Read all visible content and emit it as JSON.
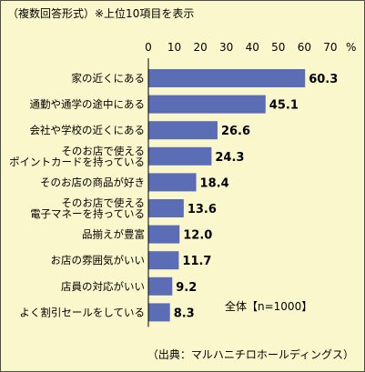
{
  "chart_data": {
    "type": "bar",
    "orientation": "horizontal",
    "note": "（複数回答形式）※上位10項目を表示",
    "unit": "%",
    "xlim": [
      0,
      70
    ],
    "xticks": [
      0,
      10,
      20,
      30,
      40,
      50,
      60,
      70
    ],
    "categories": [
      [
        "家の近くにある"
      ],
      [
        "通勤や通学の途中にある"
      ],
      [
        "会社や学校の近くにある"
      ],
      [
        "そのお店で使える",
        "ポイントカードを持っている"
      ],
      [
        "そのお店の商品が好き"
      ],
      [
        "そのお店で使える",
        "電子マネーを持っている"
      ],
      [
        "品揃えが豊富"
      ],
      [
        "お店の雰囲気がいい"
      ],
      [
        "店員の対応がいい"
      ],
      [
        "よく割引セールをしている"
      ]
    ],
    "values": [
      60.3,
      45.1,
      26.6,
      24.3,
      18.4,
      13.6,
      12.0,
      11.7,
      9.2,
      8.3
    ],
    "value_labels": [
      "60.3",
      "45.1",
      "26.6",
      "24.3",
      "18.4",
      "13.6",
      "12.0",
      "11.7",
      "9.2",
      "8.3"
    ],
    "sample_note": "全体【n=1000】",
    "source": "（出典：マルハニチロホールディングス）",
    "bar_color": "#5b6eb5",
    "background_color": "#fbf7cd",
    "grid": false
  }
}
